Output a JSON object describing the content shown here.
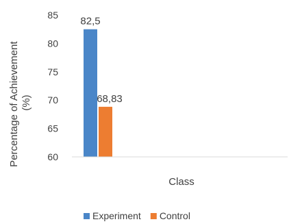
{
  "chart_data": {
    "type": "bar",
    "categories": [
      "Class"
    ],
    "series": [
      {
        "name": "Experiment",
        "values": [
          82.5
        ],
        "color": "#4a86c8",
        "label": "82,5"
      },
      {
        "name": "Control",
        "values": [
          68.83
        ],
        "color": "#ed7d31",
        "label": "68,83"
      }
    ],
    "title": "",
    "xlabel": "Class",
    "ylabel": "Percentage of Achievement (%)",
    "ylabel_lines": [
      "Percentage of Achievement",
      "(%)"
    ],
    "ylim": [
      60,
      85
    ],
    "yticks": [
      60,
      65,
      70,
      75,
      80,
      85
    ],
    "grid": false,
    "legend_position": "bottom"
  }
}
